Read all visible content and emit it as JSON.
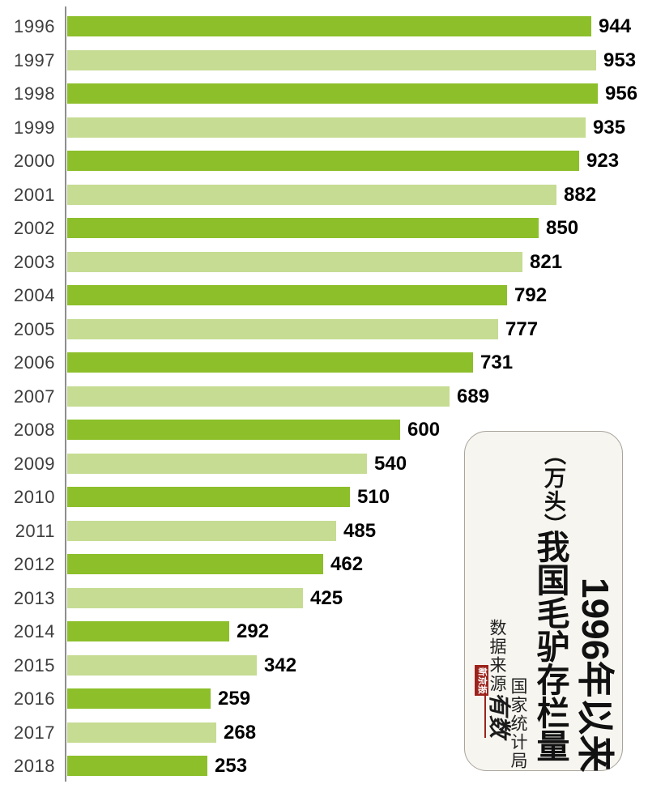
{
  "chart_data": {
    "type": "bar",
    "orientation": "horizontal",
    "title": "1996年以来我国毛驴存栏量（万头）",
    "unit": "万头",
    "source": "数据来源：国家统计局",
    "categories": [
      "1996",
      "1997",
      "1998",
      "1999",
      "2000",
      "2001",
      "2002",
      "2003",
      "2004",
      "2005",
      "2006",
      "2007",
      "2008",
      "2009",
      "2010",
      "2011",
      "2012",
      "2013",
      "2014",
      "2015",
      "2016",
      "2017",
      "2018"
    ],
    "values": [
      944,
      953,
      956,
      935,
      923,
      882,
      850,
      821,
      792,
      777,
      731,
      689,
      600,
      540,
      510,
      485,
      462,
      425,
      292,
      342,
      259,
      268,
      253
    ],
    "xlim": [
      0,
      1000
    ],
    "value_labels_shown": true,
    "gridlines": false,
    "bar_color_pattern": "alternating dark/light starting dark",
    "legend": "none"
  },
  "title_box": {
    "unit": "（万头）",
    "main": "我国毛驴存栏量",
    "prefix": "1996年以来",
    "source_label": "数据来源：",
    "source_value": "国家统计局",
    "logo_name": "新京报",
    "logo_sub": "有数"
  },
  "colors": {
    "bar_dark": "#8cbf2a",
    "bar_light": "#c5dc92",
    "axis": "#8e8e8e",
    "year_text": "#3d3d3d",
    "value_text": "#000000",
    "box_bg": "#f7f5f0",
    "logo_red": "#9b231c"
  }
}
